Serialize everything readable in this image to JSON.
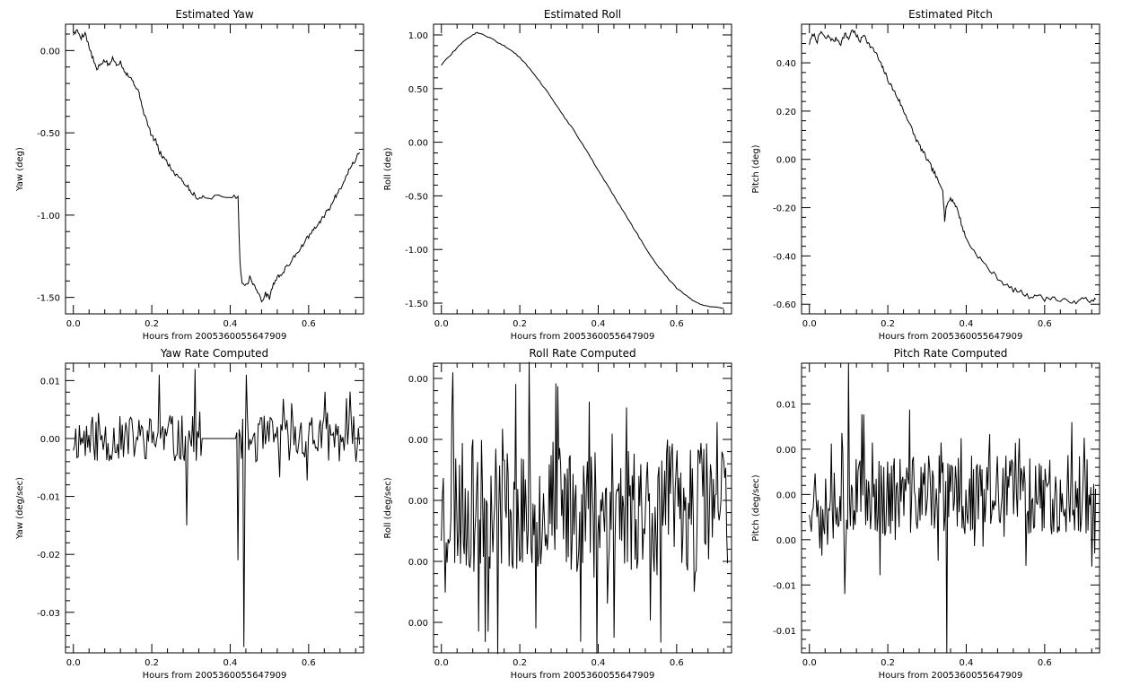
{
  "chart_data": [
    {
      "id": "estimated-yaw",
      "type": "line",
      "title": "Estimated Yaw",
      "xlabel": "Hours from 2005360055647909",
      "ylabel": "Yaw (deg)",
      "xlim": [
        -0.02,
        0.74
      ],
      "ylim": [
        -1.6,
        0.16
      ],
      "xticks": [
        0.0,
        0.2,
        0.4,
        0.6
      ],
      "xtick_labels": [
        "0.0",
        "0.2",
        "0.4",
        "0.6"
      ],
      "yticks": [
        0.0,
        -0.5,
        -1.0,
        -1.5
      ],
      "ytick_labels": [
        "0.00",
        "-0.50",
        "-1.00",
        "-1.50"
      ],
      "grid": false,
      "series": [
        {
          "style": "line",
          "x": [
            0.0,
            0.01,
            0.02,
            0.03,
            0.04,
            0.05,
            0.06,
            0.07,
            0.08,
            0.09,
            0.1,
            0.11,
            0.12,
            0.13,
            0.14,
            0.15,
            0.16,
            0.17,
            0.18,
            0.19,
            0.2,
            0.21,
            0.22,
            0.23,
            0.24,
            0.25,
            0.26,
            0.27,
            0.28,
            0.29,
            0.3,
            0.31,
            0.32,
            0.33,
            0.36,
            0.4,
            0.42,
            0.425,
            0.43,
            0.44,
            0.45,
            0.46,
            0.47,
            0.48,
            0.49,
            0.5,
            0.51,
            0.52,
            0.53,
            0.54,
            0.55,
            0.56,
            0.57,
            0.58,
            0.59,
            0.6,
            0.61,
            0.62,
            0.63,
            0.64,
            0.65,
            0.66,
            0.67,
            0.68,
            0.69,
            0.7,
            0.71,
            0.72,
            0.73
          ],
          "values": [
            0.1,
            0.12,
            0.08,
            0.11,
            0.02,
            -0.05,
            -0.12,
            -0.08,
            -0.06,
            -0.09,
            -0.05,
            -0.08,
            -0.07,
            -0.12,
            -0.15,
            -0.18,
            -0.22,
            -0.28,
            -0.38,
            -0.45,
            -0.52,
            -0.55,
            -0.62,
            -0.65,
            -0.68,
            -0.72,
            -0.75,
            -0.76,
            -0.8,
            -0.82,
            -0.86,
            -0.88,
            -0.9,
            -0.89,
            -0.89,
            -0.89,
            -0.89,
            -1.3,
            -1.4,
            -1.43,
            -1.38,
            -1.42,
            -1.47,
            -1.52,
            -1.48,
            -1.5,
            -1.42,
            -1.38,
            -1.36,
            -1.33,
            -1.3,
            -1.26,
            -1.23,
            -1.2,
            -1.16,
            -1.13,
            -1.1,
            -1.07,
            -1.04,
            -1.0,
            -0.97,
            -0.93,
            -0.88,
            -0.84,
            -0.79,
            -0.74,
            -0.7,
            -0.66,
            -0.62
          ]
        }
      ]
    },
    {
      "id": "estimated-roll",
      "type": "line",
      "title": "Estimated Roll",
      "xlabel": "Hours from 2005360055647909",
      "ylabel": "Roll (deg)",
      "xlim": [
        -0.02,
        0.74
      ],
      "ylim": [
        -1.6,
        1.1
      ],
      "xticks": [
        0.0,
        0.2,
        0.4,
        0.6
      ],
      "xtick_labels": [
        "0.0",
        "0.2",
        "0.4",
        "0.6"
      ],
      "yticks": [
        1.0,
        0.5,
        0.0,
        -0.5,
        -1.0,
        -1.5
      ],
      "ytick_labels": [
        "1.00",
        "0.50",
        "0.00",
        "-0.50",
        "-1.00",
        "-1.50"
      ],
      "grid": false,
      "series": [
        {
          "style": "line",
          "x": [
            0.0,
            0.02,
            0.04,
            0.06,
            0.08,
            0.09,
            0.1,
            0.12,
            0.14,
            0.16,
            0.18,
            0.2,
            0.22,
            0.24,
            0.26,
            0.28,
            0.3,
            0.32,
            0.34,
            0.36,
            0.38,
            0.4,
            0.42,
            0.44,
            0.46,
            0.48,
            0.5,
            0.52,
            0.54,
            0.56,
            0.58,
            0.6,
            0.62,
            0.64,
            0.66,
            0.68,
            0.7,
            0.72
          ],
          "values": [
            0.72,
            0.8,
            0.88,
            0.95,
            1.0,
            1.02,
            1.01,
            0.98,
            0.94,
            0.9,
            0.85,
            0.79,
            0.71,
            0.62,
            0.52,
            0.42,
            0.31,
            0.2,
            0.1,
            -0.02,
            -0.14,
            -0.26,
            -0.38,
            -0.5,
            -0.62,
            -0.74,
            -0.86,
            -0.98,
            -1.09,
            -1.19,
            -1.28,
            -1.36,
            -1.42,
            -1.47,
            -1.51,
            -1.53,
            -1.54,
            -1.55
          ]
        }
      ]
    },
    {
      "id": "estimated-pitch",
      "type": "line",
      "title": "Estimated Pitch",
      "xlabel": "Hours from 2005360055647909",
      "ylabel": "Pitch (deg)",
      "xlim": [
        -0.02,
        0.74
      ],
      "ylim": [
        -0.64,
        0.56
      ],
      "xticks": [
        0.0,
        0.2,
        0.4,
        0.6
      ],
      "xtick_labels": [
        "0.0",
        "0.2",
        "0.4",
        "0.6"
      ],
      "yticks": [
        0.4,
        0.2,
        0.0,
        -0.2,
        -0.4,
        -0.6
      ],
      "ytick_labels": [
        "0.40",
        "0.20",
        "0.00",
        "-0.20",
        "-0.40",
        "-0.60"
      ],
      "grid": false,
      "series": [
        {
          "style": "line",
          "x": [
            0.0,
            0.01,
            0.02,
            0.03,
            0.04,
            0.05,
            0.06,
            0.07,
            0.08,
            0.09,
            0.1,
            0.11,
            0.12,
            0.13,
            0.14,
            0.15,
            0.16,
            0.17,
            0.18,
            0.19,
            0.2,
            0.21,
            0.22,
            0.23,
            0.24,
            0.25,
            0.26,
            0.27,
            0.28,
            0.29,
            0.3,
            0.31,
            0.32,
            0.33,
            0.34,
            0.345,
            0.35,
            0.36,
            0.37,
            0.38,
            0.39,
            0.4,
            0.42,
            0.44,
            0.46,
            0.48,
            0.5,
            0.52,
            0.54,
            0.56,
            0.58,
            0.6,
            0.62,
            0.64,
            0.66,
            0.68,
            0.7,
            0.72,
            0.73
          ],
          "values": [
            0.48,
            0.52,
            0.49,
            0.53,
            0.5,
            0.51,
            0.49,
            0.5,
            0.48,
            0.52,
            0.5,
            0.54,
            0.51,
            0.49,
            0.52,
            0.48,
            0.46,
            0.44,
            0.4,
            0.37,
            0.33,
            0.3,
            0.27,
            0.24,
            0.2,
            0.17,
            0.13,
            0.09,
            0.06,
            0.03,
            0.0,
            -0.03,
            -0.06,
            -0.1,
            -0.12,
            -0.25,
            -0.19,
            -0.16,
            -0.18,
            -0.22,
            -0.28,
            -0.33,
            -0.38,
            -0.42,
            -0.46,
            -0.49,
            -0.52,
            -0.54,
            -0.55,
            -0.57,
            -0.56,
            -0.58,
            -0.57,
            -0.59,
            -0.58,
            -0.6,
            -0.57,
            -0.59,
            -0.58
          ]
        }
      ]
    },
    {
      "id": "yaw-rate",
      "type": "line",
      "title": "Yaw Rate Computed",
      "xlabel": "Hours from 2005360055647909",
      "ylabel": "Yaw (deg/sec)",
      "xlim": [
        -0.02,
        0.74
      ],
      "ylim": [
        -0.037,
        0.013
      ],
      "xticks": [
        0.0,
        0.2,
        0.4,
        0.6
      ],
      "xtick_labels": [
        "0.0",
        "0.2",
        "0.4",
        "0.6"
      ],
      "yticks": [
        0.01,
        0.0,
        -0.01,
        -0.02,
        -0.03
      ],
      "ytick_labels": [
        "0.01",
        "0.00",
        "-0.01",
        "-0.02",
        "-0.03"
      ],
      "grid": false,
      "series": [
        {
          "style": "noise",
          "flat_segment": [
            0.325,
            0.415,
            0.0
          ],
          "spikes": [
            [
              0.325,
              -0.003
            ],
            [
              0.42,
              -0.021
            ],
            [
              0.435,
              -0.036
            ],
            [
              0.44,
              0.011
            ],
            [
              0.29,
              -0.015
            ],
            [
              0.31,
              0.012
            ],
            [
              0.22,
              0.011
            ]
          ],
          "x_range": [
            0.0,
            0.73
          ],
          "n_points": 240,
          "amplitude": 0.004,
          "seed": 11
        }
      ]
    },
    {
      "id": "roll-rate",
      "type": "line",
      "title": "Roll Rate Computed",
      "xlabel": "Hours from 2005360055647909",
      "ylabel": "Roll (deg/sec)",
      "xlim": [
        -0.02,
        0.74
      ],
      "ylim": [
        -0.007,
        0.0025
      ],
      "xticks": [
        0.0,
        0.2,
        0.4,
        0.6
      ],
      "xtick_labels": [
        "0.0",
        "0.2",
        "0.4",
        "0.6"
      ],
      "yticks": [
        0.002,
        0.0,
        -0.002,
        -0.004,
        -0.006
      ],
      "ytick_labels": [
        "0.00",
        "0.00",
        "0.00",
        "0.00",
        "0.00"
      ],
      "grid": false,
      "series": [
        {
          "style": "noise",
          "flat_segment": null,
          "spikes": [
            [
              0.03,
              0.0022
            ],
            [
              0.24,
              -0.0062
            ],
            [
              0.44,
              -0.0065
            ]
          ],
          "x_range": [
            0.0,
            0.73
          ],
          "n_points": 300,
          "amplitude": 0.0022,
          "center": -0.0022,
          "seed": 23
        }
      ]
    },
    {
      "id": "pitch-rate",
      "type": "line",
      "title": "Pitch Rate Computed",
      "xlabel": "Hours from 2005360055647909",
      "ylabel": "Pitch (deg/sec)",
      "xlim": [
        -0.02,
        0.74
      ],
      "ylim": [
        -0.0175,
        0.0145
      ],
      "xticks": [
        0.0,
        0.2,
        0.4,
        0.6
      ],
      "xtick_labels": [
        "0.0",
        "0.2",
        "0.4",
        "0.6"
      ],
      "yticks": [
        0.01,
        0.005,
        0.0,
        -0.005,
        -0.01,
        -0.015
      ],
      "ytick_labels": [
        "0.01",
        "0.00",
        "0.00",
        "0.00",
        "-0.01",
        "-0.01"
      ],
      "grid": false,
      "series": [
        {
          "style": "noise",
          "flat_segment": null,
          "spikes": [
            [
              0.35,
              -0.0175
            ],
            [
              0.1,
              0.0145
            ],
            [
              0.09,
              -0.011
            ]
          ],
          "x_range": [
            0.0,
            0.73
          ],
          "n_points": 300,
          "amplitude": 0.0045,
          "center": 0.0,
          "seed": 37
        }
      ]
    }
  ]
}
